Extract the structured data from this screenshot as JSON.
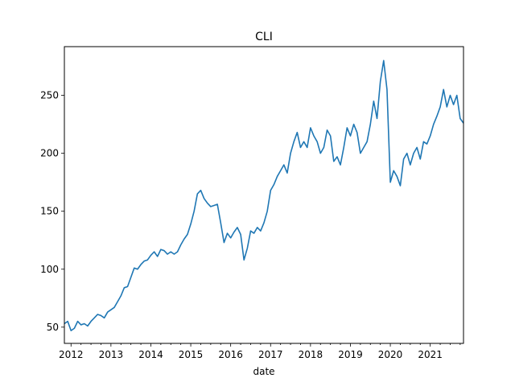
{
  "chart_data": {
    "type": "line",
    "title": "CLI",
    "xlabel": "date",
    "ylabel": "",
    "x_ticks": [
      "2012",
      "2013",
      "2014",
      "2015",
      "2016",
      "2017",
      "2018",
      "2019",
      "2020",
      "2021"
    ],
    "y_ticks": [
      50,
      100,
      150,
      200,
      250
    ],
    "xlim": [
      "2011-11",
      "2021-11"
    ],
    "ylim": [
      36,
      292
    ],
    "grid": false,
    "legend": "none",
    "series": [
      {
        "color": "#1f77b4",
        "x": [
          "2011-11",
          "2011-12",
          "2012-01",
          "2012-02",
          "2012-03",
          "2012-04",
          "2012-05",
          "2012-06",
          "2012-07",
          "2012-08",
          "2012-09",
          "2012-10",
          "2012-11",
          "2012-12",
          "2013-01",
          "2013-02",
          "2013-03",
          "2013-04",
          "2013-05",
          "2013-06",
          "2013-07",
          "2013-08",
          "2013-09",
          "2013-10",
          "2013-11",
          "2013-12",
          "2014-01",
          "2014-02",
          "2014-03",
          "2014-04",
          "2014-05",
          "2014-06",
          "2014-07",
          "2014-08",
          "2014-09",
          "2014-10",
          "2014-11",
          "2014-12",
          "2015-01",
          "2015-02",
          "2015-03",
          "2015-04",
          "2015-05",
          "2015-06",
          "2015-07",
          "2015-08",
          "2015-09",
          "2015-10",
          "2015-11",
          "2015-12",
          "2016-01",
          "2016-02",
          "2016-03",
          "2016-04",
          "2016-05",
          "2016-06",
          "2016-07",
          "2016-08",
          "2016-09",
          "2016-10",
          "2016-11",
          "2016-12",
          "2017-01",
          "2017-02",
          "2017-03",
          "2017-04",
          "2017-05",
          "2017-06",
          "2017-07",
          "2017-08",
          "2017-09",
          "2017-10",
          "2017-11",
          "2017-12",
          "2018-01",
          "2018-02",
          "2018-03",
          "2018-04",
          "2018-05",
          "2018-06",
          "2018-07",
          "2018-08",
          "2018-09",
          "2018-10",
          "2018-11",
          "2018-12",
          "2019-01",
          "2019-02",
          "2019-03",
          "2019-04",
          "2019-05",
          "2019-06",
          "2019-07",
          "2019-08",
          "2019-09",
          "2019-10",
          "2019-11",
          "2019-12",
          "2020-01",
          "2020-02",
          "2020-03",
          "2020-04",
          "2020-05",
          "2020-06",
          "2020-07",
          "2020-08",
          "2020-09",
          "2020-10",
          "2020-11",
          "2020-12",
          "2021-01",
          "2021-02",
          "2021-03",
          "2021-04",
          "2021-05",
          "2021-06",
          "2021-07",
          "2021-08",
          "2021-09",
          "2021-10",
          "2021-11"
        ],
        "y": [
          53,
          55,
          47,
          49,
          55,
          52,
          53,
          51,
          55,
          58,
          61,
          60,
          58,
          63,
          65,
          67,
          72,
          77,
          84,
          85,
          93,
          101,
          100,
          104,
          107,
          108,
          112,
          115,
          111,
          117,
          116,
          113,
          115,
          113,
          115,
          121,
          126,
          130,
          139,
          150,
          165,
          168,
          161,
          157,
          154,
          155,
          156,
          140,
          123,
          131,
          127,
          132,
          136,
          130,
          108,
          118,
          133,
          131,
          136,
          133,
          140,
          150,
          168,
          173,
          180,
          185,
          190,
          183,
          200,
          210,
          218,
          205,
          210,
          205,
          222,
          215,
          210,
          200,
          205,
          220,
          215,
          193,
          197,
          190,
          205,
          222,
          215,
          225,
          218,
          200,
          205,
          210,
          225,
          245,
          230,
          262,
          280,
          255,
          175,
          185,
          180,
          172,
          195,
          200,
          190,
          200,
          205,
          195,
          210,
          208,
          215,
          225,
          232,
          240,
          255,
          240,
          250,
          242,
          250,
          230,
          226
        ]
      }
    ]
  }
}
